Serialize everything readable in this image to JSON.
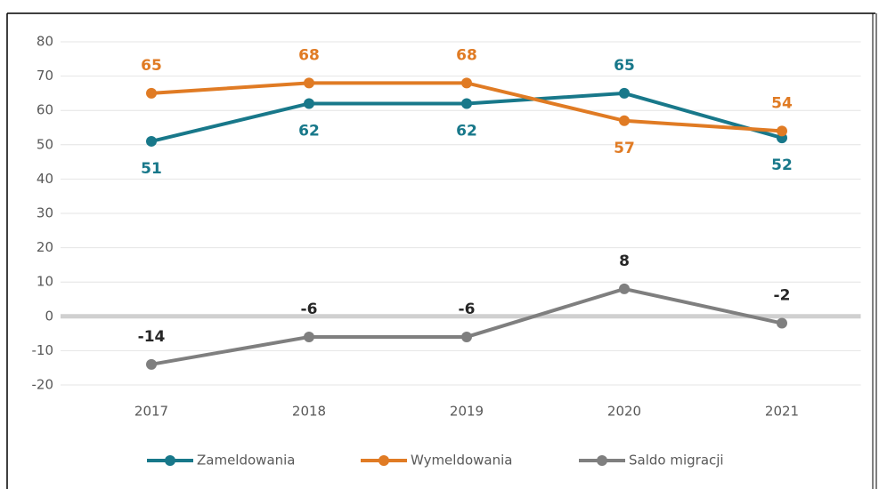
{
  "chart_data": {
    "type": "line",
    "categories": [
      "2017",
      "2018",
      "2019",
      "2020",
      "2021"
    ],
    "series": [
      {
        "name": "Zameldowania",
        "color": "#18788a",
        "values": [
          51,
          62,
          62,
          65,
          52
        ]
      },
      {
        "name": "Wymeldowania",
        "color": "#e07b24",
        "values": [
          65,
          68,
          68,
          57,
          54
        ]
      },
      {
        "name": "Saldo migracji",
        "color": "#7f7f7f",
        "values": [
          -14,
          -6,
          -6,
          8,
          -2
        ]
      }
    ],
    "ylim": [
      -20,
      80
    ],
    "yticks": [
      -20,
      -10,
      0,
      10,
      20,
      30,
      40,
      50,
      60,
      70,
      80
    ],
    "grid": true,
    "legend": "bottom"
  }
}
